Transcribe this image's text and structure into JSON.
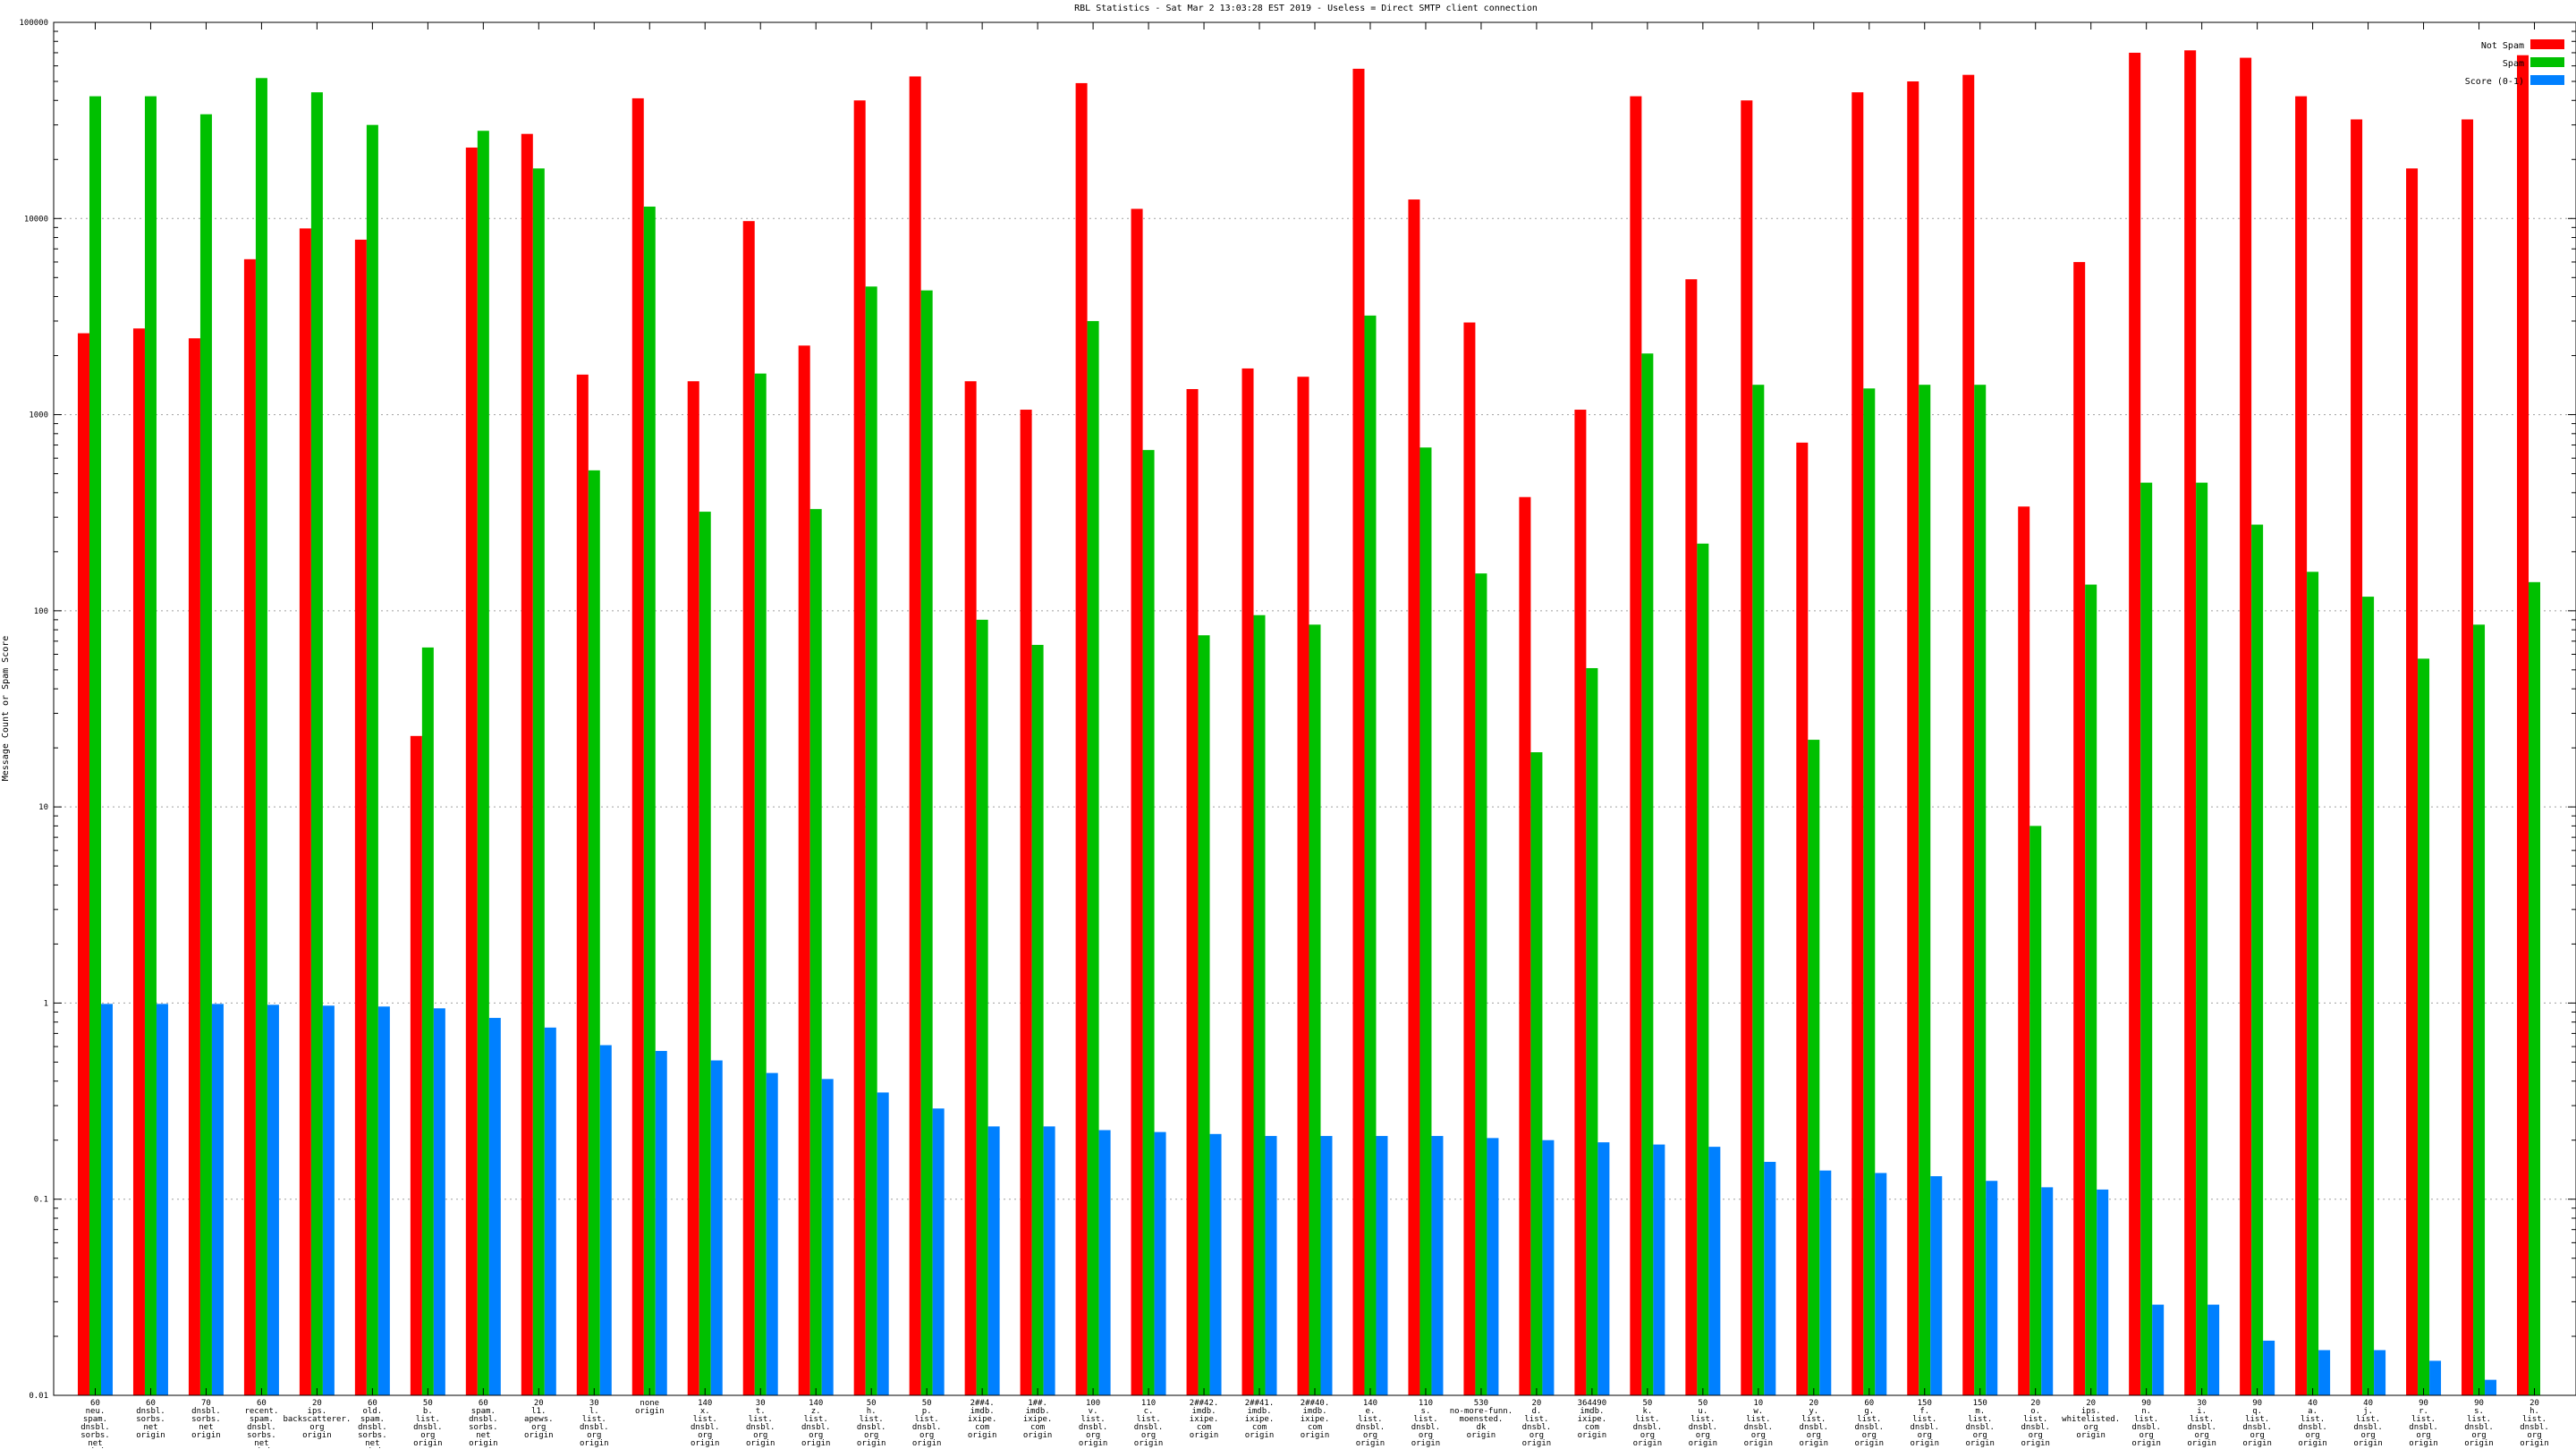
{
  "chart_data": {
    "type": "bar",
    "title": "RBL Statistics - Sat Mar  2 13:03:28 EST 2019 - Useless = Direct SMTP client connection",
    "xlabel": "",
    "ylabel": "Message Count or Spam Score",
    "yscale": "log",
    "ylim": [
      0.01,
      100000
    ],
    "yticks": [
      0.01,
      0.1,
      1,
      10,
      100,
      1000,
      10000,
      100000
    ],
    "ytick_labels": [
      "0.01",
      "0.1",
      "1",
      "10",
      "100",
      "1000",
      "10000",
      "100000"
    ],
    "grid": true,
    "legend_position": "top-right",
    "categories": [
      [
        "60",
        "neu.",
        "spam.",
        "dnsbl.",
        "sorbs.",
        "net",
        "origin"
      ],
      [
        "60",
        "dnsbl.",
        "sorbs.",
        "net",
        "origin"
      ],
      [
        "70",
        "dnsbl.",
        "sorbs.",
        "net",
        "origin"
      ],
      [
        "60",
        "recent.",
        "spam.",
        "dnsbl.",
        "sorbs.",
        "net",
        "origin"
      ],
      [
        "20",
        "ips.",
        "backscatterer.",
        "org",
        "origin"
      ],
      [
        "60",
        "old.",
        "spam.",
        "dnsbl.",
        "sorbs.",
        "net",
        "origin"
      ],
      [
        "50",
        "b.",
        "list.",
        "dnsbl.",
        "org",
        "origin"
      ],
      [
        "60",
        "spam.",
        "dnsbl.",
        "sorbs.",
        "net",
        "origin"
      ],
      [
        "20",
        "l1.",
        "apews.",
        "org",
        "origin"
      ],
      [
        "30",
        "l.",
        "list.",
        "dnsbl.",
        "org",
        "origin"
      ],
      [
        "none",
        "origin"
      ],
      [
        "140",
        "x.",
        "list.",
        "dnsbl.",
        "org",
        "origin"
      ],
      [
        "30",
        "t.",
        "list.",
        "dnsbl.",
        "org",
        "origin"
      ],
      [
        "140",
        "z.",
        "list.",
        "dnsbl.",
        "org",
        "origin"
      ],
      [
        "50",
        "h.",
        "list.",
        "dnsbl.",
        "org",
        "origin"
      ],
      [
        "50",
        "p.",
        "list.",
        "dnsbl.",
        "org",
        "origin"
      ],
      [
        "2##4.",
        "imdb.",
        "ixipe.",
        "com",
        "origin"
      ],
      [
        "1##.",
        "imdb.",
        "ixipe.",
        "com",
        "origin"
      ],
      [
        "100",
        "v.",
        "list.",
        "dnsbl.",
        "org",
        "origin"
      ],
      [
        "110",
        "c.",
        "list.",
        "dnsbl.",
        "org",
        "origin"
      ],
      [
        "2##42.",
        "imdb.",
        "ixipe.",
        "com",
        "origin"
      ],
      [
        "2##41.",
        "imdb.",
        "ixipe.",
        "com",
        "origin"
      ],
      [
        "2##40.",
        "imdb.",
        "ixipe.",
        "com",
        "origin"
      ],
      [
        "140",
        "e.",
        "list.",
        "dnsbl.",
        "org",
        "origin"
      ],
      [
        "110",
        "s.",
        "list.",
        "dnsbl.",
        "org",
        "origin"
      ],
      [
        "530",
        "no-more-funn.",
        "moensted.",
        "dk",
        "origin"
      ],
      [
        "20",
        "d.",
        "list.",
        "dnsbl.",
        "org",
        "origin"
      ],
      [
        "364490",
        "imdb.",
        "ixipe.",
        "com",
        "origin"
      ],
      [
        "50",
        "k.",
        "list.",
        "dnsbl.",
        "org",
        "origin"
      ],
      [
        "50",
        "u.",
        "list.",
        "dnsbl.",
        "org",
        "origin"
      ],
      [
        "10",
        "w.",
        "list.",
        "dnsbl.",
        "org",
        "origin"
      ],
      [
        "20",
        "y.",
        "list.",
        "dnsbl.",
        "org",
        "origin"
      ],
      [
        "60",
        "g.",
        "list.",
        "dnsbl.",
        "org",
        "origin"
      ],
      [
        "150",
        "f.",
        "list.",
        "dnsbl.",
        "org",
        "origin"
      ],
      [
        "150",
        "m.",
        "list.",
        "dnsbl.",
        "org",
        "origin"
      ],
      [
        "20",
        "o.",
        "list.",
        "dnsbl.",
        "org",
        "origin"
      ],
      [
        "20",
        "ips.",
        "whitelisted.",
        "org",
        "origin"
      ],
      [
        "90",
        "n.",
        "list.",
        "dnsbl.",
        "org",
        "origin"
      ],
      [
        "30",
        "i.",
        "list.",
        "dnsbl.",
        "org",
        "origin"
      ],
      [
        "90",
        "q.",
        "list.",
        "dnsbl.",
        "org",
        "origin"
      ],
      [
        "40",
        "a.",
        "list.",
        "dnsbl.",
        "org",
        "origin"
      ],
      [
        "40",
        "j.",
        "list.",
        "dnsbl.",
        "org",
        "origin"
      ],
      [
        "90",
        "r.",
        "list.",
        "dnsbl.",
        "org",
        "origin"
      ],
      [
        "90",
        "s.",
        "list.",
        "dnsbl.",
        "org",
        "origin"
      ],
      [
        "20",
        "h.",
        "list.",
        "dnsbl.",
        "org",
        "origin"
      ]
    ],
    "series": [
      {
        "name": "Not Spam",
        "color": "#ff0000",
        "values": [
          2600,
          2750,
          2450,
          6200,
          8900,
          7800,
          23,
          23000,
          27000,
          1600,
          41000,
          1480,
          9700,
          2250,
          40000,
          53000,
          1480,
          1060,
          49000,
          11200,
          1350,
          1720,
          1560,
          58000,
          12500,
          2950,
          380,
          1060,
          42000,
          4900,
          40000,
          720,
          44000,
          50000,
          54000,
          340,
          6000,
          70000,
          72000,
          66000,
          42000,
          32000,
          18000,
          32000,
          68000
        ]
      },
      {
        "name": "Spam",
        "color": "#00c000",
        "values": [
          42000,
          42000,
          34000,
          52000,
          44000,
          30000,
          65,
          28000,
          18000,
          520,
          11500,
          320,
          1620,
          330,
          4500,
          4300,
          90,
          67,
          3000,
          660,
          75,
          95,
          85,
          3200,
          680,
          155,
          19,
          51,
          2050,
          220,
          1420,
          22,
          1360,
          1420,
          1420,
          8,
          136,
          450,
          450,
          275,
          158,
          118,
          57,
          85,
          140
        ]
      },
      {
        "name": "Score (0-1)",
        "color": "#0080ff",
        "values": [
          0.99,
          0.99,
          0.99,
          0.98,
          0.97,
          0.96,
          0.94,
          0.84,
          0.75,
          0.61,
          0.57,
          0.51,
          0.44,
          0.41,
          0.35,
          0.29,
          0.235,
          0.235,
          0.225,
          0.22,
          0.215,
          0.21,
          0.21,
          0.21,
          0.21,
          0.205,
          0.2,
          0.195,
          0.19,
          0.185,
          0.155,
          0.14,
          0.136,
          0.131,
          0.124,
          0.115,
          0.112,
          0.029,
          0.029,
          0.019,
          0.017,
          0.017,
          0.015,
          0.012,
          0.01
        ]
      }
    ]
  }
}
